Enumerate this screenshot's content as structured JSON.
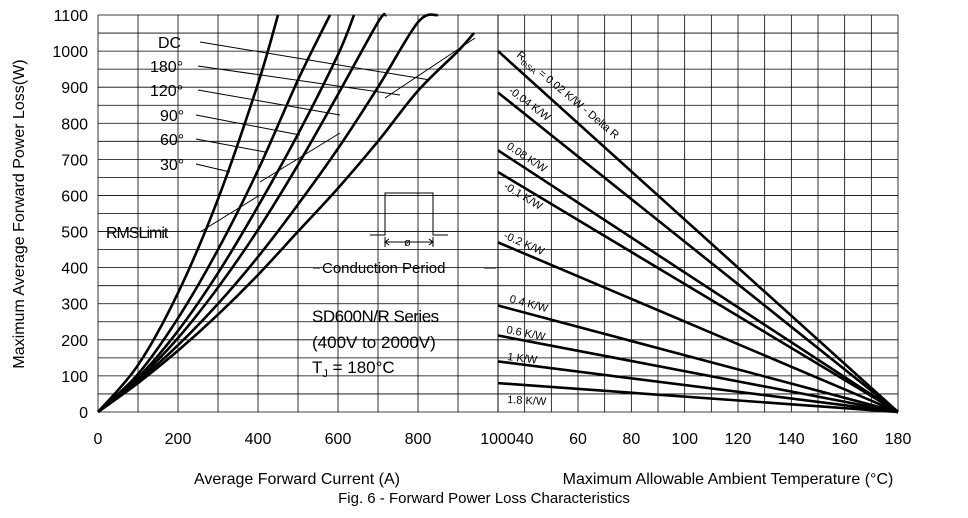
{
  "ylabel": "Maximum Average Forward Power Loss(W)",
  "caption": "Fig. 6 - Forward Power Loss Characteristics",
  "colors": {
    "curve": "#000000",
    "grid": "#000000",
    "background": "#ffffff"
  },
  "chart_data": [
    {
      "type": "line",
      "xlabel": "Average Forward Current (A)",
      "ylabel": "Maximum Average Forward Power Loss(W)",
      "xlim": [
        0,
        1000
      ],
      "ylim": [
        0,
        1100
      ],
      "x_ticks": [
        "0",
        "200",
        "400",
        "600",
        "800",
        "1000"
      ],
      "y_ticks": [
        "0",
        "100",
        "200",
        "300",
        "400",
        "500",
        "600",
        "700",
        "800",
        "900",
        "1000",
        "1100"
      ],
      "grid": true,
      "series": [
        {
          "name": "30°",
          "x": [
            0,
            100,
            200,
            300,
            400,
            450
          ],
          "y": [
            0,
            130,
            330,
            590,
            910,
            1100
          ]
        },
        {
          "name": "60°",
          "x": [
            0,
            100,
            200,
            300,
            400,
            500,
            580
          ],
          "y": [
            0,
            105,
            260,
            450,
            670,
            920,
            1100
          ]
        },
        {
          "name": "90°",
          "x": [
            0,
            100,
            200,
            300,
            400,
            500,
            600,
            640
          ],
          "y": [
            0,
            95,
            225,
            385,
            570,
            770,
            990,
            1100
          ]
        },
        {
          "name": "120°",
          "x": [
            0,
            100,
            200,
            300,
            400,
            500,
            600,
            700,
            720
          ],
          "y": [
            0,
            90,
            205,
            345,
            505,
            685,
            880,
            1080,
            1100
          ]
        },
        {
          "name": "180°",
          "x": [
            0,
            100,
            200,
            300,
            400,
            500,
            600,
            700,
            800,
            850
          ],
          "y": [
            0,
            85,
            185,
            300,
            430,
            575,
            730,
            900,
            1080,
            1100
          ]
        },
        {
          "name": "DC",
          "x": [
            0,
            100,
            200,
            300,
            400,
            500,
            600,
            700,
            800,
            900,
            940
          ],
          "y": [
            0,
            80,
            170,
            270,
            380,
            500,
            620,
            750,
            890,
            1000,
            1050
          ]
        }
      ],
      "curve_labels": [
        "DC",
        "180°",
        "120°",
        "90°",
        "60°",
        "30°"
      ],
      "annotations": {
        "rms_limit": "RMSLimit",
        "conduction": "Conduction Period",
        "phi": "ø",
        "series_name": "SD600N/R Series",
        "voltage": "(400V to 2000V)",
        "tj_main": "T",
        "tj_sub": "J",
        "tj_rest": " = 180°C"
      }
    },
    {
      "type": "line",
      "xlabel": "Maximum Allowable Ambient Temperature (°C)",
      "xlim": [
        30,
        180
      ],
      "ylim": [
        0,
        1100
      ],
      "x_ticks": [
        "40",
        "60",
        "80",
        "100",
        "120",
        "140",
        "160",
        "180"
      ],
      "grid": true,
      "series": [
        {
          "name": "0.02 K/W",
          "x": [
            30,
            180
          ],
          "y": [
            1000,
            0
          ]
        },
        {
          "name": "0.04 K/W",
          "x": [
            30,
            180
          ],
          "y": [
            885,
            0
          ]
        },
        {
          "name": "0.08 K/W",
          "x": [
            30,
            180
          ],
          "y": [
            725,
            0
          ]
        },
        {
          "name": "0.1 K/W",
          "x": [
            30,
            180
          ],
          "y": [
            665,
            0
          ]
        },
        {
          "name": "0.2 K/W",
          "x": [
            30,
            180
          ],
          "y": [
            470,
            0
          ]
        },
        {
          "name": "0.4 K/W",
          "x": [
            30,
            180
          ],
          "y": [
            295,
            0
          ]
        },
        {
          "name": "0.6 K/W",
          "x": [
            30,
            180
          ],
          "y": [
            212,
            0
          ]
        },
        {
          "name": "1 K/W",
          "x": [
            30,
            180
          ],
          "y": [
            140,
            0
          ]
        },
        {
          "name": "1.8 K/W",
          "x": [
            30,
            180
          ],
          "y": [
            80,
            0
          ]
        }
      ],
      "line_labels": [
        "-0.04 K/W",
        "0.08 K/W",
        "-0.1 K/W",
        "-0.2 K/W",
        "0.4 K/W",
        "0.6 K/W",
        "1 K/W",
        "1.8 K/W"
      ],
      "rth_label": {
        "main": "R",
        "sub": "thSA",
        "rest": " = 0.02 K/W - Delta R"
      }
    }
  ]
}
